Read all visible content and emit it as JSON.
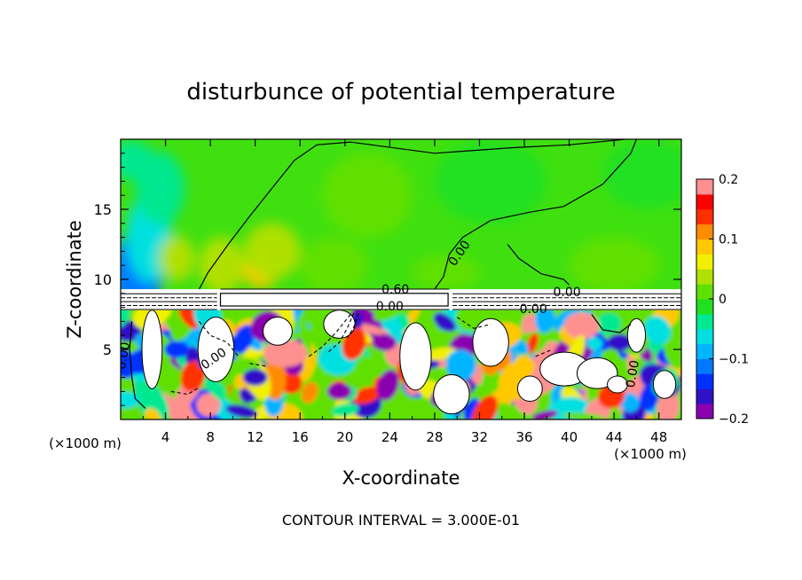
{
  "chart_data": {
    "type": "heatmap",
    "title": "disturbunce of potential temperature",
    "xlabel": "X-coordinate",
    "ylabel": "Z-coordinate",
    "x_unit_label": "(×1000 m)",
    "x_unit_label_right": "(×1000 m)",
    "xlim": [
      0,
      50
    ],
    "ylim": [
      0,
      20
    ],
    "x_ticks": [
      4,
      8,
      12,
      16,
      20,
      24,
      28,
      32,
      36,
      40,
      44,
      48
    ],
    "y_ticks": [
      5,
      10,
      15
    ],
    "footer": "CONTOUR INTERVAL = 3.000E-01",
    "colorbar": {
      "range": [
        -0.2,
        0.2
      ],
      "tick_values": [
        0.2,
        0.1,
        0,
        -0.1,
        -0.2
      ],
      "tick_labels": [
        "0.2",
        "0.1",
        "0",
        "−0.1",
        "−0.2"
      ],
      "colors": [
        "#8a00b0",
        "#3010c8",
        "#0030ff",
        "#0078ff",
        "#00b4ff",
        "#00e0e0",
        "#00e890",
        "#20e020",
        "#60e000",
        "#b0e000",
        "#f0f000",
        "#ffc800",
        "#ff8c00",
        "#ff3000",
        "#ff0000",
        "#ff9090"
      ]
    },
    "contour_labels": [
      {
        "text": "0.60",
        "x": 24.5,
        "z": 9.0
      },
      {
        "text": "0.00",
        "x": 24.0,
        "z": 7.8
      },
      {
        "text": "0.00",
        "x": 30.5,
        "z": 11.7
      },
      {
        "text": "0.00",
        "x": 36.8,
        "z": 7.6
      },
      {
        "text": "0.00",
        "x": 39.8,
        "z": 8.8
      },
      {
        "text": "0.00",
        "x": 0.6,
        "z": 4.5
      },
      {
        "text": "0.00",
        "x": 8.5,
        "z": 4.1
      },
      {
        "text": "0.00",
        "x": 46.0,
        "z": 3.2
      }
    ]
  }
}
